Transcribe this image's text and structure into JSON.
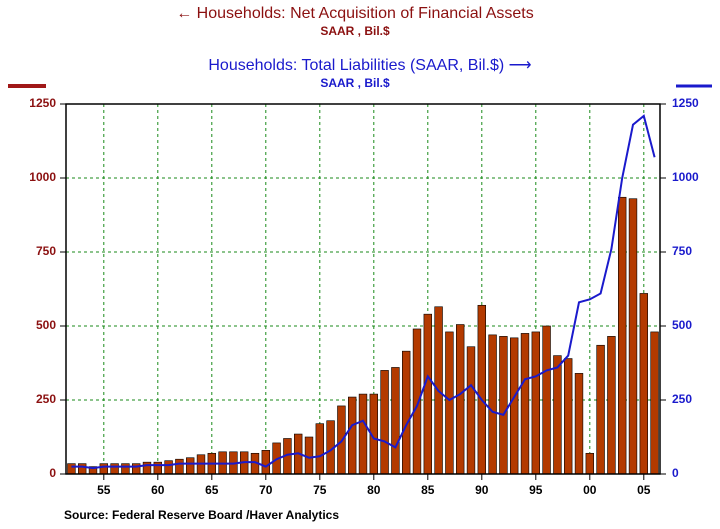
{
  "chart_data": {
    "type": "bar_line",
    "title": "← Households: Net Acquisition of Financial Assets",
    "subtitle": "SAAR , Bil.$",
    "title2": "Households: Total Liabilities (SAAR, Bil.$) ⟶",
    "subtitle2": "SAAR , Bil.$",
    "source": "Source:   Federal Reserve Board /Haver Analytics",
    "categories": [
      null,
      null,
      null,
      "55",
      null,
      null,
      null,
      null,
      "60",
      null,
      null,
      null,
      null,
      "65",
      null,
      null,
      null,
      null,
      "70",
      null,
      null,
      null,
      null,
      "75",
      null,
      null,
      null,
      null,
      "80",
      null,
      null,
      null,
      null,
      "85",
      null,
      null,
      null,
      null,
      "90",
      null,
      null,
      null,
      null,
      "95",
      null,
      null,
      null,
      null,
      "00",
      null,
      null,
      null,
      null,
      "05",
      null
    ],
    "series": [
      {
        "name": "Households: Net Acquisition of Financial Assets",
        "color": "#b33a00",
        "axis": "y",
        "values": [
          35,
          35,
          25,
          35,
          35,
          35,
          35,
          40,
          40,
          45,
          50,
          55,
          65,
          70,
          75,
          75,
          75,
          70,
          80,
          105,
          120,
          135,
          125,
          170,
          180,
          230,
          260,
          270,
          270,
          350,
          360,
          415,
          490,
          540,
          565,
          480,
          505,
          430,
          570,
          470,
          465,
          460,
          475,
          480,
          500,
          400,
          390,
          340,
          70,
          435,
          465,
          935,
          930,
          610,
          480
        ]
      },
      {
        "name": "Households: Total Liabilities",
        "color": "#1a1acc",
        "axis": "y2",
        "values": [
          25,
          25,
          20,
          25,
          25,
          25,
          25,
          30,
          30,
          30,
          35,
          35,
          35,
          35,
          35,
          35,
          40,
          40,
          25,
          50,
          65,
          70,
          55,
          60,
          80,
          110,
          165,
          180,
          120,
          110,
          90,
          165,
          230,
          330,
          280,
          250,
          270,
          300,
          250,
          210,
          200,
          260,
          320,
          330,
          350,
          360,
          400,
          580,
          590,
          610,
          760,
          1000,
          1180,
          1210,
          1070
        ]
      }
    ],
    "ylim": [
      0,
      1250
    ],
    "yticks": [
      0,
      250,
      500,
      750,
      1000,
      1250
    ],
    "y2lim": [
      0,
      1250
    ],
    "y2ticks": [
      0,
      250,
      500,
      750,
      1000,
      1250
    ],
    "grid": true
  }
}
